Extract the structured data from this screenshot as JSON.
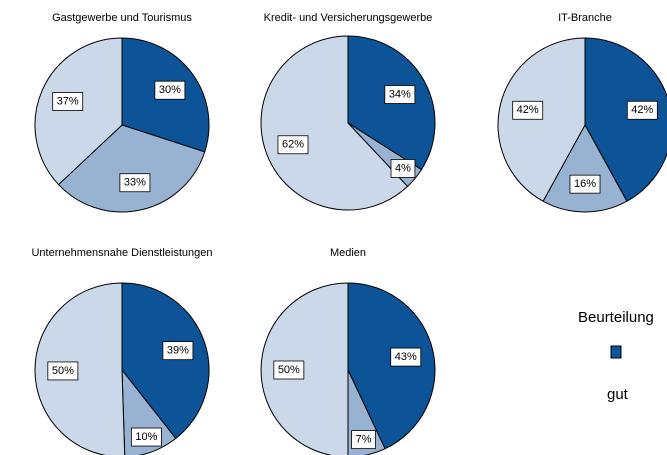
{
  "chart_data": [
    {
      "type": "pie",
      "title": "Gastgewerbe und Tourismus",
      "values": [
        30,
        33,
        37
      ],
      "value_labels": [
        "30%",
        "33%",
        "37%"
      ],
      "colors": [
        "#0d5397",
        "#98b2d2",
        "#cad8e9"
      ]
    },
    {
      "type": "pie",
      "title": "Kredit- und Versicherungsgewerbe",
      "values": [
        34,
        4,
        62
      ],
      "value_labels": [
        "34%",
        "4%",
        "62%"
      ],
      "colors": [
        "#0d5397",
        "#98b2d2",
        "#cad8e9"
      ]
    },
    {
      "type": "pie",
      "title": "IT-Branche",
      "values": [
        42,
        16,
        42
      ],
      "value_labels": [
        "42%",
        "16%",
        "42%"
      ],
      "colors": [
        "#0d5397",
        "#98b2d2",
        "#cad8e9"
      ]
    },
    {
      "type": "pie",
      "title": "Unternehmensnahe Dienstleistungen",
      "values": [
        39,
        10,
        50
      ],
      "value_labels": [
        "39%",
        "10%",
        "50%"
      ],
      "colors": [
        "#0d5397",
        "#98b2d2",
        "#cad8e9"
      ]
    },
    {
      "type": "pie",
      "title": "Medien",
      "values": [
        43,
        7,
        50
      ],
      "value_labels": [
        "43%",
        "7%",
        "50%"
      ],
      "colors": [
        "#0d5397",
        "#98b2d2",
        "#cad8e9"
      ]
    }
  ],
  "legend": {
    "title": "Beurteilung",
    "entries": [
      {
        "name": "gut",
        "color": "#0d5397"
      }
    ]
  }
}
